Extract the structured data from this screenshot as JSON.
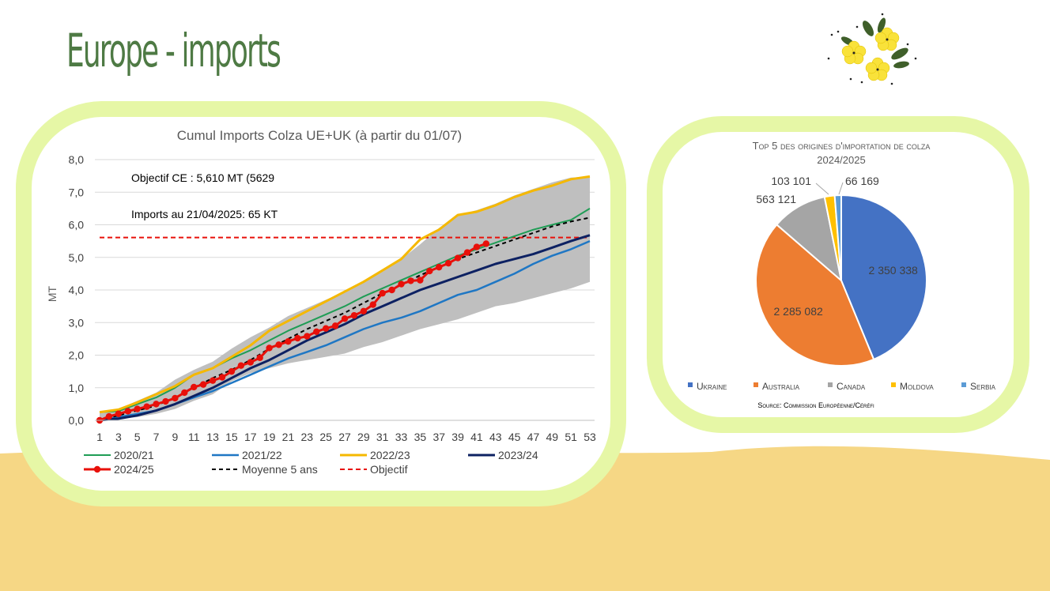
{
  "page": {
    "title": "Europe - imports"
  },
  "colors": {
    "sand": "#f6d785",
    "card_border": "#e6f7a6",
    "title_green": "#4e7a44"
  },
  "chart_data": [
    {
      "type": "line",
      "title": "Cumul Imports Colza UE+UK (à partir du 01/07)",
      "xlabel": "",
      "ylabel": "MT",
      "x": [
        1,
        3,
        5,
        7,
        9,
        11,
        13,
        15,
        17,
        19,
        21,
        23,
        25,
        27,
        29,
        31,
        33,
        35,
        37,
        39,
        41,
        43,
        45,
        47,
        49,
        51,
        53
      ],
      "x_tick_labels": [
        "1",
        "3",
        "5",
        "7",
        "9",
        "11",
        "13",
        "15",
        "17",
        "19",
        "21",
        "23",
        "25",
        "27",
        "29",
        "31",
        "33",
        "35",
        "37",
        "39",
        "41",
        "43",
        "45",
        "47",
        "49",
        "51",
        "53"
      ],
      "ylim": [
        0,
        8
      ],
      "y_tick_labels": [
        "0,0",
        "1,0",
        "2,0",
        "3,0",
        "4,0",
        "5,0",
        "6,0",
        "7,0",
        "8,0"
      ],
      "grid": true,
      "legend_position": "bottom",
      "annotations": [
        "Objectif CE : 5,610 MT  (5629",
        "Imports au 21/04/2025: 65 KT"
      ],
      "band": {
        "min": [
          0.0,
          0.05,
          0.1,
          0.2,
          0.35,
          0.6,
          0.8,
          1.2,
          1.45,
          1.6,
          1.75,
          1.85,
          1.95,
          2.05,
          2.25,
          2.4,
          2.6,
          2.8,
          2.95,
          3.1,
          3.3,
          3.5,
          3.6,
          3.75,
          3.9,
          4.05,
          4.25
        ],
        "max": [
          0.25,
          0.35,
          0.6,
          0.85,
          1.25,
          1.55,
          1.8,
          2.2,
          2.55,
          2.85,
          3.2,
          3.45,
          3.7,
          3.95,
          4.25,
          4.6,
          4.95,
          5.4,
          5.9,
          6.3,
          6.45,
          6.65,
          6.9,
          7.1,
          7.3,
          7.45,
          7.48
        ]
      },
      "series": [
        {
          "name": "2020/21",
          "color": "#1f9d55",
          "values": [
            0.25,
            0.28,
            0.5,
            0.7,
            1.0,
            1.4,
            1.6,
            1.9,
            2.15,
            2.45,
            2.75,
            3.0,
            3.25,
            3.5,
            3.8,
            4.05,
            4.3,
            4.55,
            4.8,
            5.05,
            5.25,
            5.45,
            5.65,
            5.85,
            6.0,
            6.15,
            6.5
          ]
        },
        {
          "name": "2021/22",
          "color": "#1f77c4",
          "values": [
            0.0,
            0.1,
            0.2,
            0.3,
            0.5,
            0.7,
            0.9,
            1.15,
            1.4,
            1.65,
            1.9,
            2.1,
            2.3,
            2.55,
            2.8,
            3.0,
            3.15,
            3.35,
            3.6,
            3.85,
            4.0,
            4.25,
            4.5,
            4.8,
            5.05,
            5.25,
            5.5
          ]
        },
        {
          "name": "2022/23",
          "color": "#f5b800",
          "values": [
            0.25,
            0.33,
            0.55,
            0.8,
            1.05,
            1.4,
            1.6,
            1.95,
            2.3,
            2.75,
            3.05,
            3.35,
            3.65,
            3.95,
            4.25,
            4.6,
            4.95,
            5.55,
            5.85,
            6.3,
            6.4,
            6.6,
            6.85,
            7.05,
            7.2,
            7.4,
            7.48
          ]
        },
        {
          "name": "2023/24",
          "color": "#0d2162",
          "values": [
            0.0,
            0.05,
            0.15,
            0.3,
            0.5,
            0.75,
            1.0,
            1.3,
            1.6,
            1.85,
            2.15,
            2.45,
            2.7,
            2.95,
            3.25,
            3.5,
            3.75,
            4.0,
            4.2,
            4.4,
            4.6,
            4.8,
            4.95,
            5.1,
            5.3,
            5.5,
            5.68
          ]
        },
        {
          "name": "2024/25",
          "color": "#e8100a",
          "x": [
            1,
            2,
            3,
            4,
            5,
            6,
            7,
            8,
            9,
            10,
            11,
            12,
            13,
            14,
            15,
            16,
            17,
            18,
            19,
            20,
            21,
            22,
            23,
            24,
            25,
            26,
            27,
            28,
            29,
            30,
            31,
            32,
            33,
            34,
            35,
            36,
            37,
            38,
            39,
            40,
            41,
            42
          ],
          "values": [
            0.0,
            0.12,
            0.2,
            0.28,
            0.35,
            0.42,
            0.5,
            0.58,
            0.68,
            0.85,
            1.02,
            1.1,
            1.22,
            1.32,
            1.5,
            1.68,
            1.78,
            1.92,
            2.22,
            2.32,
            2.42,
            2.52,
            2.58,
            2.72,
            2.82,
            2.9,
            3.12,
            3.22,
            3.35,
            3.55,
            3.9,
            4.0,
            4.18,
            4.28,
            4.3,
            4.58,
            4.7,
            4.82,
            4.98,
            5.15,
            5.32,
            5.42
          ]
        },
        {
          "name": "Moyenne 5 ans",
          "color": "#000000",
          "values": [
            0.0,
            0.15,
            0.3,
            0.45,
            0.7,
            1.0,
            1.3,
            1.55,
            1.85,
            2.2,
            2.5,
            2.8,
            3.05,
            3.3,
            3.6,
            3.9,
            4.15,
            4.45,
            4.7,
            4.95,
            5.15,
            5.35,
            5.55,
            5.75,
            5.95,
            6.1,
            6.22
          ]
        },
        {
          "name": "Objectif",
          "color": "#e8100a",
          "values": [
            5.61,
            5.61,
            5.61,
            5.61,
            5.61,
            5.61,
            5.61,
            5.61,
            5.61,
            5.61,
            5.61,
            5.61,
            5.61,
            5.61,
            5.61,
            5.61,
            5.61,
            5.61,
            5.61,
            5.61,
            5.61,
            5.61,
            5.61,
            5.61,
            5.61,
            5.61,
            5.61
          ]
        }
      ]
    },
    {
      "type": "pie",
      "title": "Top 5 des origines d'importation de colza",
      "subtitle": "2024/2025",
      "labels": [
        "Ukraine",
        "Australia",
        "Canada",
        "Moldova",
        "Serbia"
      ],
      "values": [
        2350338,
        2285082,
        563121,
        103101,
        66169
      ],
      "value_labels": [
        "2 350 338",
        "2 285 082",
        "563 121",
        "103 101",
        "66 169"
      ],
      "colors": [
        "#4472c4",
        "#ed7d31",
        "#a5a5a5",
        "#ffc000",
        "#5b9bd5"
      ],
      "legend_position": "bottom",
      "source": "Source: Commission Européenne/Céréfi"
    }
  ]
}
